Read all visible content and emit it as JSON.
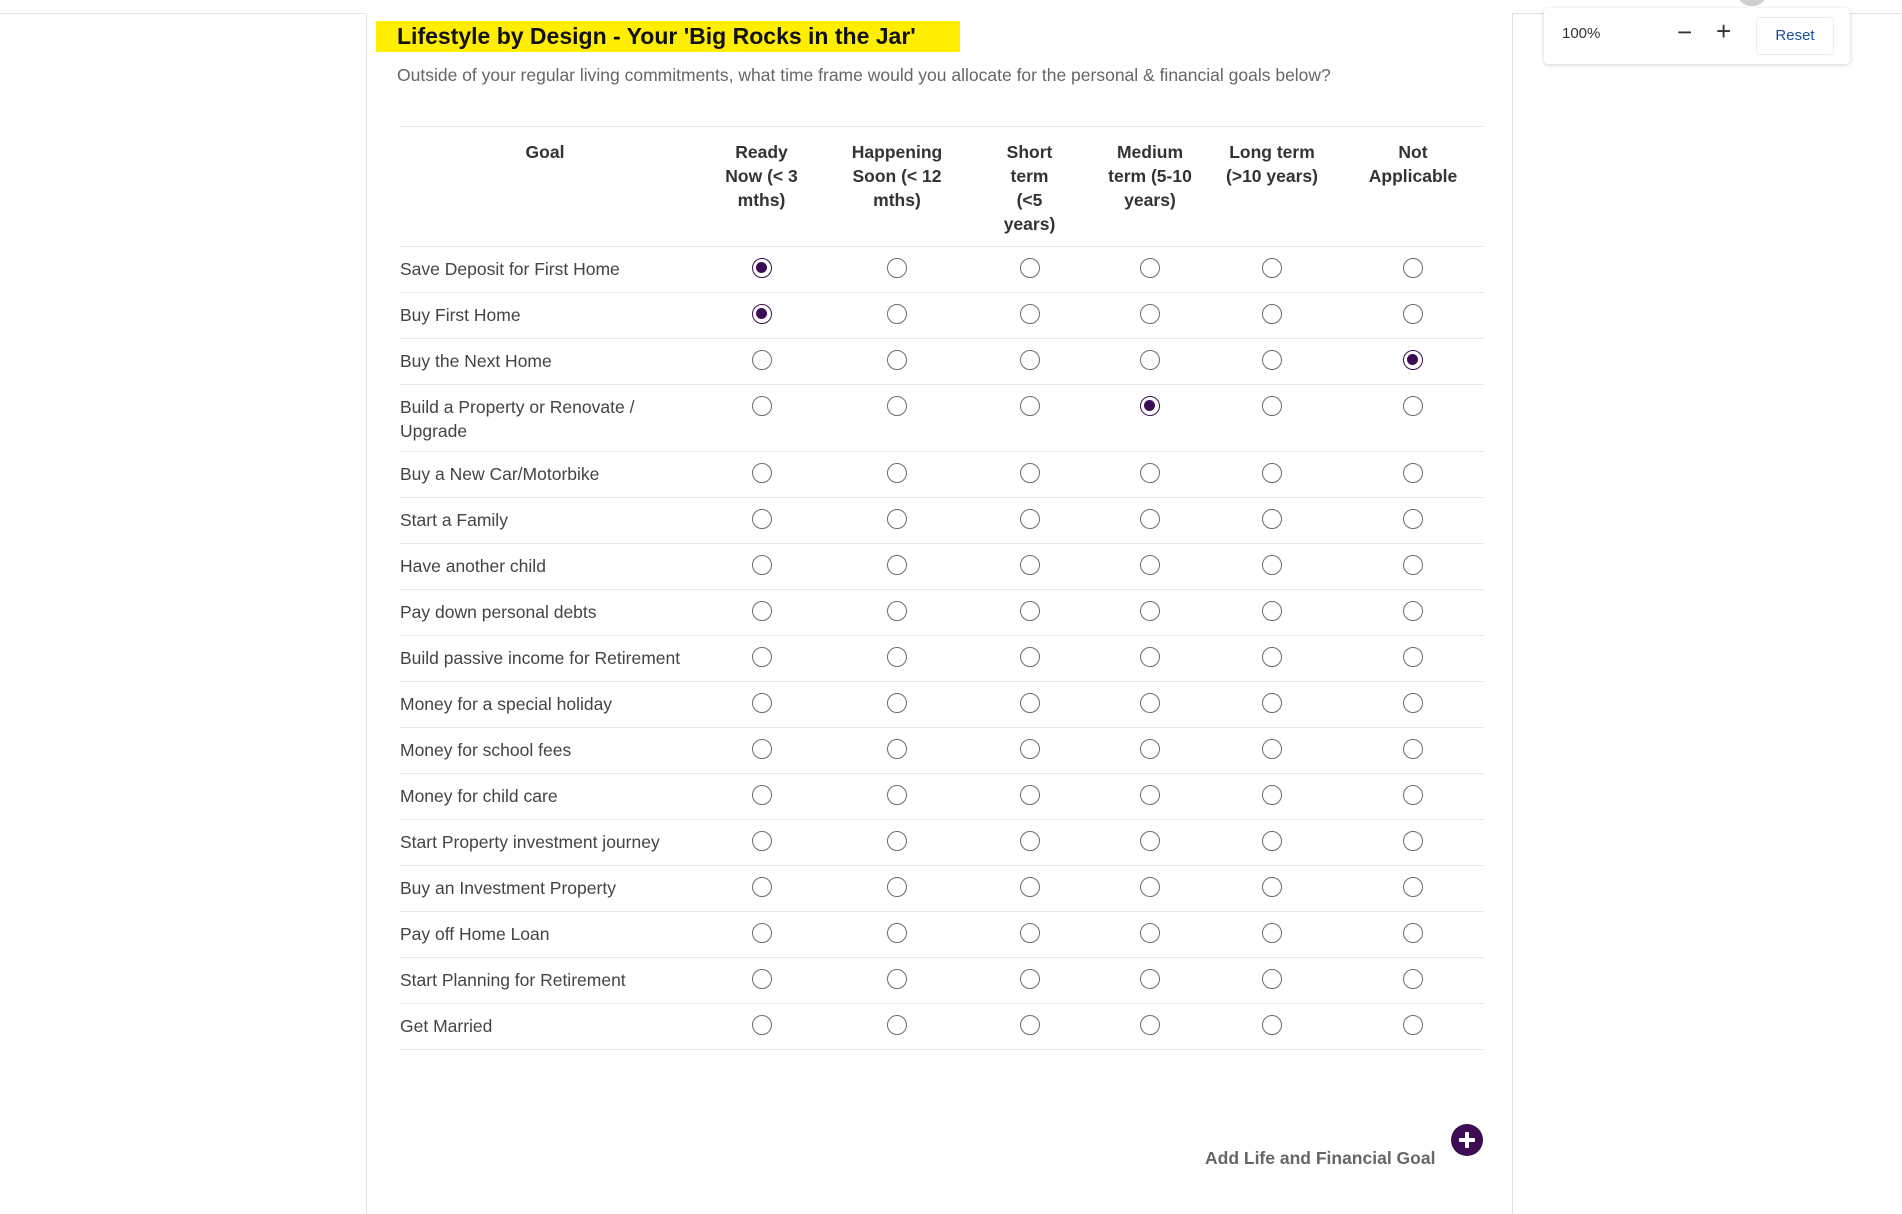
{
  "page": {
    "title": "Lifestyle by Design - Your 'Big Rocks in the Jar'",
    "subtitle": "Outside of your regular living commitments, what time frame would you allocate for the personal & financial goals below?"
  },
  "zoom": {
    "level": "100%",
    "minus_label": "−",
    "plus_label": "+",
    "reset_label": "Reset"
  },
  "table": {
    "goal_header": "Goal",
    "columns": [
      {
        "label": "Ready Now (< 3 mths)"
      },
      {
        "label": "Happening Soon (< 12 mths)"
      },
      {
        "label": "Short term (<5 years)"
      },
      {
        "label": "Medium term (5-10 years)"
      },
      {
        "label": "Long term (>10 years)"
      },
      {
        "label": "Not Applicable"
      }
    ],
    "rows": [
      {
        "goal": "Save Deposit for First Home",
        "selected": 0
      },
      {
        "goal": "Buy First Home",
        "selected": 0
      },
      {
        "goal": "Buy the Next Home",
        "selected": 5
      },
      {
        "goal": "Build a Property or Renovate / Upgrade",
        "selected": 3
      },
      {
        "goal": "Buy a New Car/Motorbike",
        "selected": null
      },
      {
        "goal": "Start a Family",
        "selected": null
      },
      {
        "goal": "Have another child",
        "selected": null
      },
      {
        "goal": "Pay down personal debts",
        "selected": null
      },
      {
        "goal": "Build passive income for Retirement",
        "selected": null
      },
      {
        "goal": "Money for a special holiday",
        "selected": null
      },
      {
        "goal": "Money for school fees",
        "selected": null
      },
      {
        "goal": "Money for child care",
        "selected": null
      },
      {
        "goal": "Start Property investment journey",
        "selected": null
      },
      {
        "goal": "Buy an Investment Property",
        "selected": null
      },
      {
        "goal": "Pay off Home Loan",
        "selected": null
      },
      {
        "goal": "Start Planning for Retirement",
        "selected": null
      },
      {
        "goal": "Get Married",
        "selected": null
      }
    ]
  },
  "add_goal": {
    "label": "Add Life and Financial Goal",
    "icon": "plus-circle-icon"
  },
  "colors": {
    "highlight": "#ffee00",
    "accent": "#3d0c55"
  }
}
